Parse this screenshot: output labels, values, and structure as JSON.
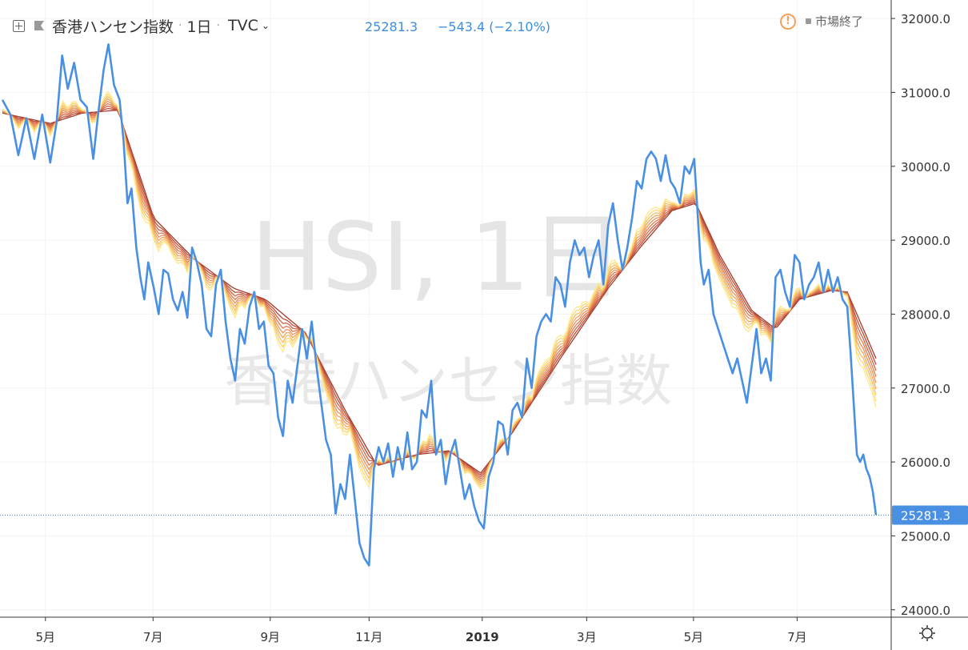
{
  "header": {
    "symbol": "香港ハンセン指数",
    "interval": "1日",
    "exchange": "TVC",
    "price": "25281.3",
    "change": "−543.4 (−2.10%)",
    "market_status": "市場終了",
    "icons": [
      "add-compare-icon",
      "flag-icon",
      "chevron-down-icon",
      "warning-icon",
      "settings-gear-icon"
    ]
  },
  "watermark": {
    "line1": "HSI, 1日",
    "line2": "香港ハンセン指数"
  },
  "colors": {
    "price_line": "#4a90e2",
    "ribbon": [
      "#ffe88a",
      "#fbd77a",
      "#f6c06c",
      "#f0a862",
      "#ea915a",
      "#e07a50",
      "#d06345",
      "#b94c36",
      "#a53a2a"
    ],
    "last_price_tag": "#4a90e2"
  },
  "chart_data": {
    "type": "line",
    "ylim": [
      23900,
      32250
    ],
    "yticks": [
      "24000.0",
      "25000.0",
      "26000.0",
      "27000.0",
      "28000.0",
      "29000.0",
      "30000.0",
      "31000.0",
      "32000.0"
    ],
    "ytick_values": [
      24000,
      25000,
      26000,
      27000,
      28000,
      29000,
      30000,
      31000,
      32000
    ],
    "xlim": [
      0,
      1100
    ],
    "x_tick_labels": [
      "5月",
      "7月",
      "9月",
      "11月",
      "2019",
      "3月",
      "5月",
      "7月"
    ],
    "x_tick_positions": [
      54,
      189,
      336,
      460,
      602,
      733,
      867,
      997
    ],
    "last_value": 25281.3,
    "last_value_label": "25281.3",
    "series": [
      {
        "name": "",
        "kind": "price",
        "points": [
          [
            0,
            30900
          ],
          [
            10,
            30700
          ],
          [
            20,
            30150
          ],
          [
            30,
            30650
          ],
          [
            40,
            30100
          ],
          [
            50,
            30700
          ],
          [
            60,
            30050
          ],
          [
            68,
            30600
          ],
          [
            75,
            31500
          ],
          [
            82,
            31050
          ],
          [
            90,
            31400
          ],
          [
            98,
            30900
          ],
          [
            106,
            30800
          ],
          [
            114,
            30100
          ],
          [
            120,
            30700
          ],
          [
            127,
            31300
          ],
          [
            133,
            31650
          ],
          [
            140,
            31100
          ],
          [
            147,
            30900
          ],
          [
            152,
            30350
          ],
          [
            157,
            29500
          ],
          [
            162,
            29700
          ],
          [
            168,
            28900
          ],
          [
            173,
            28500
          ],
          [
            178,
            28200
          ],
          [
            183,
            28700
          ],
          [
            190,
            28350
          ],
          [
            196,
            28000
          ],
          [
            202,
            28600
          ],
          [
            208,
            28550
          ],
          [
            214,
            28200
          ],
          [
            220,
            28050
          ],
          [
            226,
            28300
          ],
          [
            232,
            27950
          ],
          [
            238,
            28900
          ],
          [
            244,
            28700
          ],
          [
            250,
            28400
          ],
          [
            256,
            27800
          ],
          [
            262,
            27700
          ],
          [
            268,
            28400
          ],
          [
            274,
            28600
          ],
          [
            280,
            27900
          ],
          [
            286,
            27400
          ],
          [
            292,
            27100
          ],
          [
            298,
            27800
          ],
          [
            304,
            27600
          ],
          [
            310,
            28100
          ],
          [
            316,
            28300
          ],
          [
            322,
            27800
          ],
          [
            328,
            27900
          ],
          [
            334,
            27300
          ],
          [
            340,
            27200
          ],
          [
            346,
            26600
          ],
          [
            352,
            26350
          ],
          [
            358,
            27100
          ],
          [
            364,
            26800
          ],
          [
            370,
            27300
          ],
          [
            376,
            27800
          ],
          [
            382,
            27400
          ],
          [
            388,
            27900
          ],
          [
            394,
            27300
          ],
          [
            400,
            26800
          ],
          [
            406,
            26300
          ],
          [
            412,
            26100
          ],
          [
            418,
            25300
          ],
          [
            424,
            25700
          ],
          [
            430,
            25500
          ],
          [
            436,
            26100
          ],
          [
            442,
            25500
          ],
          [
            448,
            24900
          ],
          [
            454,
            24700
          ],
          [
            460,
            24600
          ],
          [
            466,
            25900
          ],
          [
            472,
            26200
          ],
          [
            478,
            26000
          ],
          [
            484,
            26250
          ],
          [
            490,
            25800
          ],
          [
            496,
            26200
          ],
          [
            502,
            25900
          ],
          [
            508,
            26400
          ],
          [
            514,
            25900
          ],
          [
            520,
            26000
          ],
          [
            526,
            26700
          ],
          [
            532,
            26600
          ],
          [
            538,
            27100
          ],
          [
            544,
            26100
          ],
          [
            550,
            26300
          ],
          [
            556,
            25700
          ],
          [
            562,
            26100
          ],
          [
            568,
            26300
          ],
          [
            574,
            25900
          ],
          [
            580,
            25500
          ],
          [
            586,
            25700
          ],
          [
            592,
            25400
          ],
          [
            598,
            25200
          ],
          [
            604,
            25100
          ],
          [
            610,
            25800
          ],
          [
            616,
            26000
          ],
          [
            622,
            26550
          ],
          [
            628,
            26500
          ],
          [
            634,
            26100
          ],
          [
            640,
            26700
          ],
          [
            646,
            26800
          ],
          [
            652,
            26600
          ],
          [
            658,
            27400
          ],
          [
            664,
            27000
          ],
          [
            670,
            27700
          ],
          [
            676,
            27900
          ],
          [
            682,
            28000
          ],
          [
            688,
            27900
          ],
          [
            694,
            28500
          ],
          [
            700,
            28400
          ],
          [
            706,
            28100
          ],
          [
            712,
            28700
          ],
          [
            718,
            29000
          ],
          [
            724,
            28800
          ],
          [
            730,
            28900
          ],
          [
            736,
            28500
          ],
          [
            742,
            28800
          ],
          [
            748,
            29000
          ],
          [
            754,
            28400
          ],
          [
            760,
            29200
          ],
          [
            766,
            29500
          ],
          [
            772,
            29000
          ],
          [
            778,
            28600
          ],
          [
            784,
            28900
          ],
          [
            790,
            29300
          ],
          [
            796,
            29800
          ],
          [
            802,
            29700
          ],
          [
            808,
            30100
          ],
          [
            814,
            30200
          ],
          [
            820,
            30100
          ],
          [
            826,
            29800
          ],
          [
            832,
            30150
          ],
          [
            838,
            29800
          ],
          [
            844,
            29700
          ],
          [
            850,
            29500
          ],
          [
            856,
            30000
          ],
          [
            862,
            29900
          ],
          [
            868,
            30100
          ],
          [
            872,
            29400
          ],
          [
            876,
            28700
          ],
          [
            880,
            28400
          ],
          [
            886,
            28600
          ],
          [
            892,
            28000
          ],
          [
            898,
            27800
          ],
          [
            904,
            27600
          ],
          [
            910,
            27400
          ],
          [
            916,
            27200
          ],
          [
            922,
            27400
          ],
          [
            928,
            27100
          ],
          [
            934,
            26800
          ],
          [
            940,
            27300
          ],
          [
            946,
            27800
          ],
          [
            952,
            27200
          ],
          [
            958,
            27400
          ],
          [
            964,
            27100
          ],
          [
            970,
            28500
          ],
          [
            976,
            28600
          ],
          [
            982,
            28300
          ],
          [
            988,
            28100
          ],
          [
            994,
            28800
          ],
          [
            1000,
            28700
          ],
          [
            1006,
            28200
          ],
          [
            1012,
            28400
          ],
          [
            1018,
            28500
          ],
          [
            1024,
            28700
          ],
          [
            1030,
            28300
          ],
          [
            1036,
            28600
          ],
          [
            1042,
            28300
          ],
          [
            1048,
            28500
          ],
          [
            1054,
            28200
          ],
          [
            1060,
            28100
          ],
          [
            1064,
            27500
          ],
          [
            1068,
            26800
          ],
          [
            1072,
            26100
          ],
          [
            1076,
            26000
          ],
          [
            1080,
            26100
          ],
          [
            1084,
            25900
          ],
          [
            1088,
            25800
          ],
          [
            1092,
            25600
          ],
          [
            1096,
            25281.3
          ]
        ]
      },
      {
        "name": "",
        "kind": "ribbon_base",
        "points": [
          [
            0,
            30720
          ],
          [
            60,
            30580
          ],
          [
            100,
            30720
          ],
          [
            145,
            30760
          ],
          [
            190,
            29300
          ],
          [
            240,
            28750
          ],
          [
            290,
            28350
          ],
          [
            330,
            28200
          ],
          [
            380,
            27750
          ],
          [
            430,
            26700
          ],
          [
            470,
            25950
          ],
          [
            520,
            26100
          ],
          [
            560,
            26150
          ],
          [
            600,
            25850
          ],
          [
            640,
            26400
          ],
          [
            700,
            27400
          ],
          [
            760,
            28350
          ],
          [
            800,
            28900
          ],
          [
            840,
            29400
          ],
          [
            870,
            29500
          ],
          [
            900,
            28800
          ],
          [
            940,
            28050
          ],
          [
            970,
            27800
          ],
          [
            1000,
            28200
          ],
          [
            1040,
            28320
          ],
          [
            1060,
            28300
          ],
          [
            1080,
            27800
          ],
          [
            1096,
            27400
          ]
        ]
      }
    ]
  }
}
